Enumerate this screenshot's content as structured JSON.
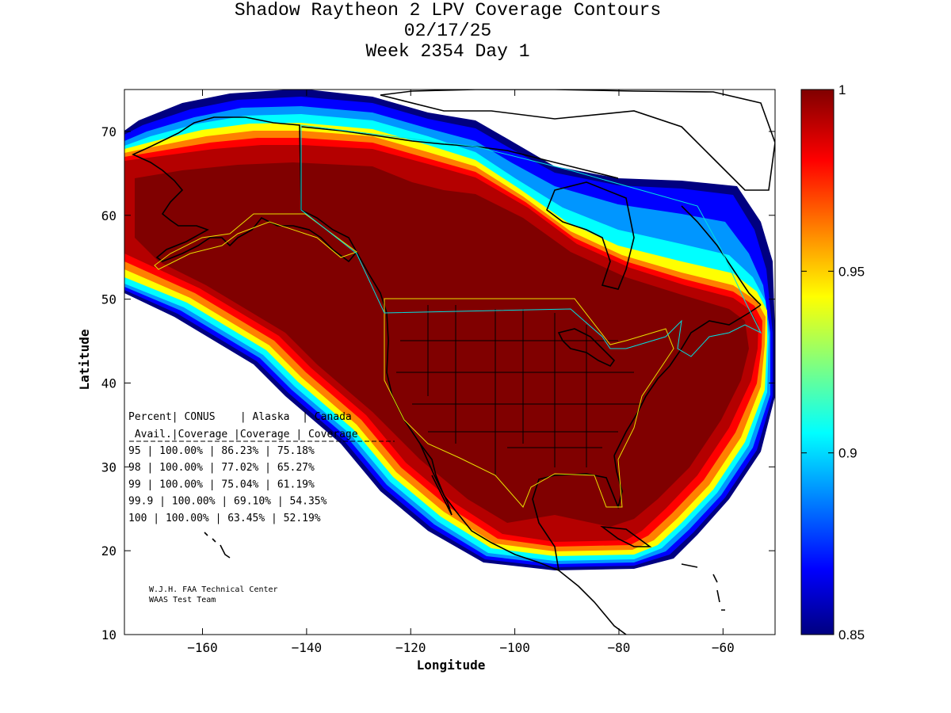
{
  "title": {
    "line1": "Shadow Raytheon 2 LPV Coverage Contours",
    "line2": "02/17/25",
    "line3": "Week 2354 Day 1"
  },
  "chart_data": {
    "type": "heatmap",
    "xlabel": "Longitude",
    "ylabel": "Latitude",
    "xlim": [
      -175,
      -50
    ],
    "ylim": [
      10,
      75
    ],
    "x_ticks": [
      -160,
      -140,
      -120,
      -100,
      -80,
      -60
    ],
    "y_ticks": [
      10,
      20,
      30,
      40,
      50,
      60,
      70
    ],
    "colorbar": {
      "range": [
        0.85,
        1
      ],
      "ticks": [
        {
          "value": 0.85,
          "label": "0.85"
        },
        {
          "value": 0.9,
          "label": "0.9"
        },
        {
          "value": 0.95,
          "label": "0.95"
        },
        {
          "value": 1,
          "label": "1"
        }
      ]
    },
    "table": {
      "header1": [
        "Percent",
        "CONUS",
        "Alaska",
        "Canada"
      ],
      "header2": [
        "Avail.",
        "Coverage",
        "Coverage",
        "Coverage"
      ],
      "rows": [
        [
          "95",
          "100.00%",
          "86.23%",
          "75.18%"
        ],
        [
          "98",
          "100.00%",
          "77.02%",
          "65.27%"
        ],
        [
          "99",
          "100.00%",
          "75.04%",
          "61.19%"
        ],
        [
          "99.9",
          "100.00%",
          "69.10%",
          "54.35%"
        ],
        [
          "100",
          "100.00%",
          "63.45%",
          "52.19%"
        ]
      ]
    },
    "credit": [
      "W.J.H. FAA Technical Center",
      "WAAS Test Team"
    ],
    "colors": {
      "max": "#800000",
      "dark_red": "#b40000",
      "red": "#ff0000",
      "orange": "#ff8000",
      "yellow": "#ffff00",
      "cyan": "#00ffff",
      "light_blue": "#0096ff",
      "blue": "#0000ff",
      "navy": "#000080",
      "conus_boundary": "#e8e000",
      "canada_boundary": "#00e0e0"
    }
  }
}
